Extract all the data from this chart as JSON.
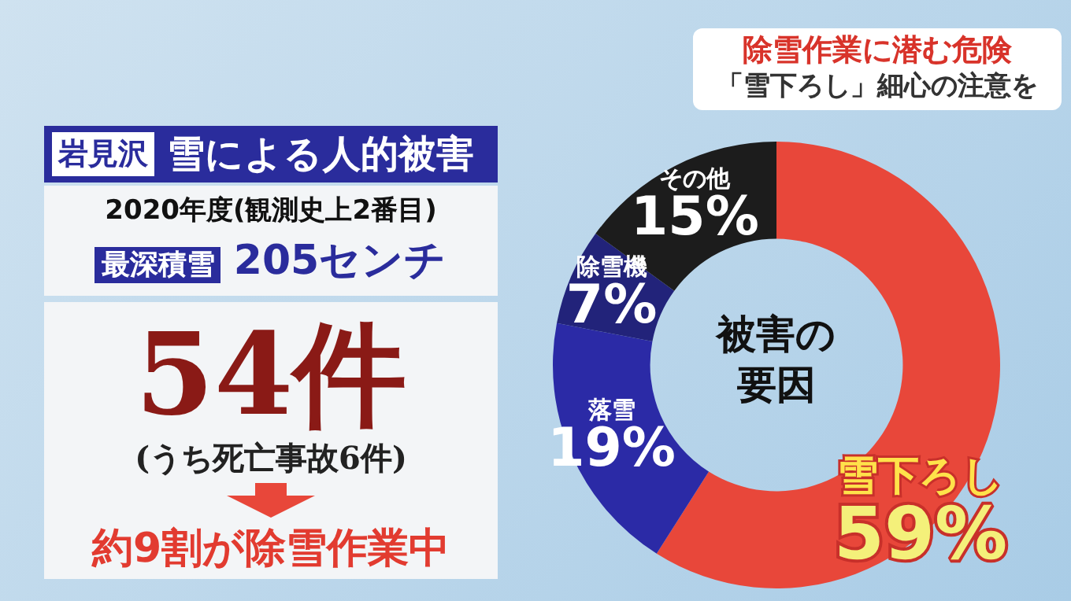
{
  "chart_data": {
    "type": "donut",
    "title": "除雪作業に潜む危険",
    "subtitle": "「雪下ろし」細心の注意を",
    "categories": [
      "雪下ろし",
      "落雪",
      "除雪機",
      "その他"
    ],
    "values": [
      59,
      19,
      7,
      15
    ],
    "colors": [
      "#e8473a",
      "#2b2aa6",
      "#22237a",
      "#1c1c1c"
    ],
    "value_labels": [
      "59%",
      "19%",
      "7%",
      "15%"
    ],
    "annotations": [
      "岩見沢",
      "雪による人的被害",
      "2020年度(観測史上2番目)",
      "最深積雪",
      "205センチ",
      "54件",
      "(うち死亡事故6件)",
      "約9割が除雪作業中",
      "被害の",
      "要因"
    ]
  }
}
